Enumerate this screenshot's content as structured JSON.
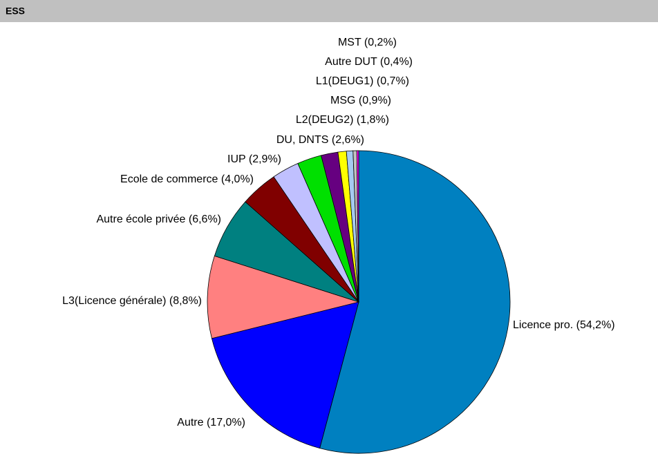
{
  "chart_data": {
    "type": "pie",
    "title": "ESS",
    "categories": [
      "Licence pro. (54,2%)",
      "Autre (17,0%)",
      "L3(Licence générale) (8,8%)",
      "Autre école privée (6,6%)",
      "Ecole de commerce (4,0%)",
      "IUP (2,9%)",
      "DU, DNTS (2,6%)",
      "L2(DEUG2) (1,8%)",
      "MSG (0,9%)",
      "L1(DEUG1) (0,7%)",
      "Autre DUT (0,4%)",
      "MST (0,2%)"
    ],
    "values": [
      54.2,
      17.0,
      8.8,
      6.6,
      4.0,
      2.9,
      2.6,
      1.8,
      0.9,
      0.7,
      0.4,
      0.2
    ],
    "colors": [
      "#0080c0",
      "#0000ff",
      "#ff8080",
      "#008080",
      "#800000",
      "#c0c0ff",
      "#00e000",
      "#660080",
      "#ffff00",
      "#a6caf0",
      "#c0c0c0",
      "#ff00ff"
    ]
  }
}
